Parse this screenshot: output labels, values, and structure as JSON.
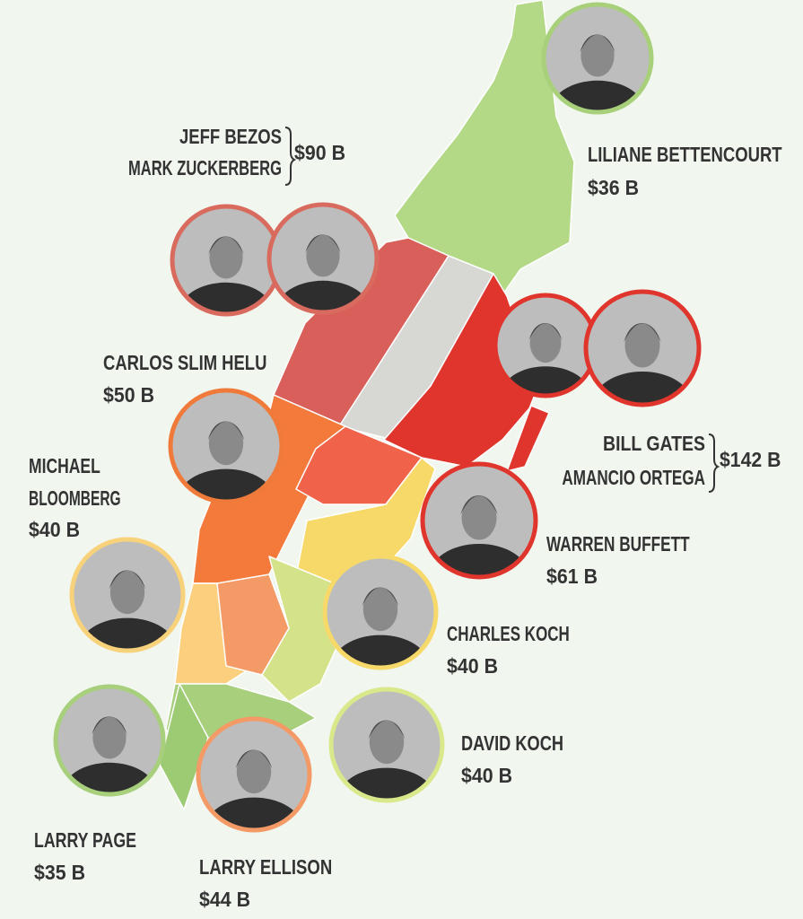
{
  "people": [
    {
      "name": "LILIANE BETTENCOURT",
      "worth": "$36 B"
    },
    {
      "name": "CARLOS SLIM HELU",
      "worth": "$50 B"
    },
    {
      "name_lines": [
        "MICHAEL",
        "BLOOMBERG"
      ],
      "worth": "$40 B"
    },
    {
      "name": "WARREN BUFFETT",
      "worth": "$61 B"
    },
    {
      "name": "CHARLES KOCH",
      "worth": "$40 B"
    },
    {
      "name": "DAVID KOCH",
      "worth": "$40 B"
    },
    {
      "name": "LARRY PAGE",
      "worth": "$35 B"
    },
    {
      "name": "LARRY ELLISON",
      "worth": "$44 B"
    }
  ],
  "groups": [
    {
      "names": [
        "JEFF BEZOS",
        "MARK ZUCKERBERG"
      ],
      "worth": "$90 B"
    },
    {
      "names": [
        "BILL GATES",
        "AMANCIO ORTEGA"
      ],
      "worth": "$142 B"
    }
  ]
}
